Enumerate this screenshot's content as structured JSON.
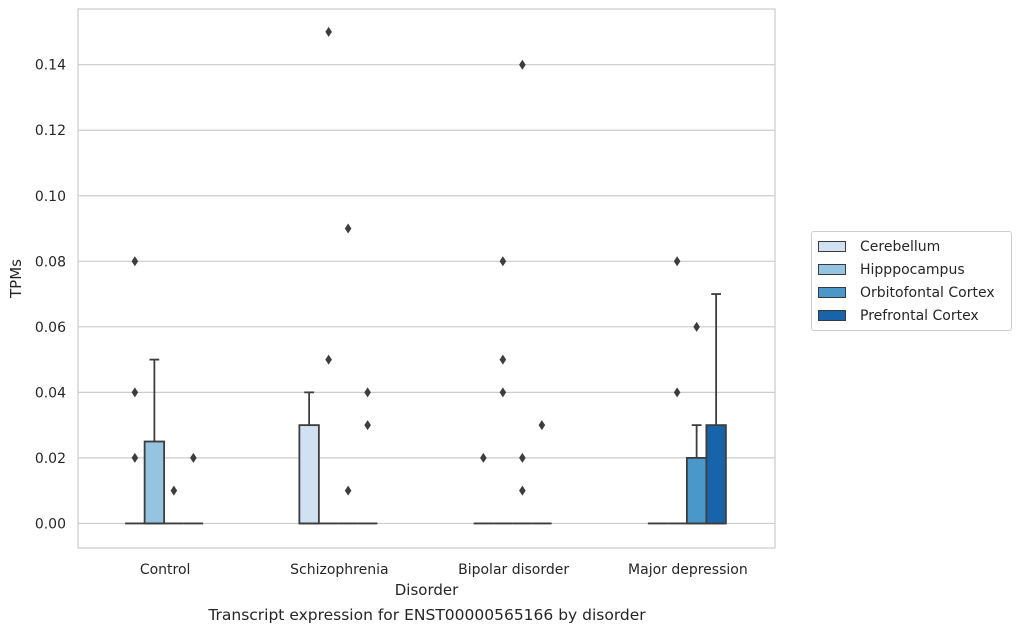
{
  "chart_data": {
    "type": "box",
    "title": "",
    "caption": "Transcript expression for ENST00000565166 by disorder",
    "xlabel": "Disorder",
    "ylabel": "TPMs",
    "ylim": [
      -0.0075,
      0.157
    ],
    "yticks": [
      0.0,
      0.02,
      0.04,
      0.06,
      0.08,
      0.1,
      0.12,
      0.14
    ],
    "ytick_labels": [
      "0.00",
      "0.02",
      "0.04",
      "0.06",
      "0.08",
      "0.10",
      "0.12",
      "0.14"
    ],
    "grid": "horizontal",
    "legend_position": "right",
    "categories": [
      "Control",
      "Schizophrenia",
      "Bipolar disorder",
      "Major depression"
    ],
    "series": [
      {
        "name": "Cerebellum",
        "color": "#d0e1f2",
        "boxes": [
          {
            "q1": 0,
            "median": 0,
            "q3": 0,
            "whisker_low": 0,
            "whisker_high": 0,
            "fliers": [
              0.02,
              0.04,
              0.08
            ]
          },
          {
            "q1": 0,
            "median": 0,
            "q3": 0.03,
            "whisker_low": 0,
            "whisker_high": 0.04,
            "fliers": []
          },
          {
            "q1": 0,
            "median": 0,
            "q3": 0,
            "whisker_low": 0,
            "whisker_high": 0,
            "fliers": [
              0.02
            ]
          },
          {
            "q1": 0,
            "median": 0,
            "q3": 0,
            "whisker_low": 0,
            "whisker_high": 0,
            "fliers": []
          }
        ]
      },
      {
        "name": "Hipppocampus",
        "color": "#94c4df",
        "boxes": [
          {
            "q1": 0,
            "median": 0,
            "q3": 0.025,
            "whisker_low": 0,
            "whisker_high": 0.05,
            "fliers": []
          },
          {
            "q1": 0,
            "median": 0,
            "q3": 0,
            "whisker_low": 0,
            "whisker_high": 0,
            "fliers": [
              0.05,
              0.15
            ]
          },
          {
            "q1": 0,
            "median": 0,
            "q3": 0,
            "whisker_low": 0,
            "whisker_high": 0,
            "fliers": [
              0.04,
              0.05,
              0.08
            ]
          },
          {
            "q1": 0,
            "median": 0,
            "q3": 0,
            "whisker_low": 0,
            "whisker_high": 0,
            "fliers": [
              0.04,
              0.08
            ]
          }
        ]
      },
      {
        "name": "Orbitofontal Cortex",
        "color": "#4a98c9",
        "boxes": [
          {
            "q1": 0,
            "median": 0,
            "q3": 0,
            "whisker_low": 0,
            "whisker_high": 0,
            "fliers": [
              0.01
            ]
          },
          {
            "q1": 0,
            "median": 0,
            "q3": 0,
            "whisker_low": 0,
            "whisker_high": 0,
            "fliers": [
              0.01,
              0.09
            ]
          },
          {
            "q1": 0,
            "median": 0,
            "q3": 0,
            "whisker_low": 0,
            "whisker_high": 0,
            "fliers": [
              0.01,
              0.02,
              0.14
            ]
          },
          {
            "q1": 0,
            "median": 0,
            "q3": 0.02,
            "whisker_low": 0,
            "whisker_high": 0.03,
            "fliers": [
              0.06
            ]
          }
        ]
      },
      {
        "name": "Prefrontal Cortex",
        "color": "#1764ab",
        "boxes": [
          {
            "q1": 0,
            "median": 0,
            "q3": 0,
            "whisker_low": 0,
            "whisker_high": 0,
            "fliers": [
              0.02
            ]
          },
          {
            "q1": 0,
            "median": 0,
            "q3": 0,
            "whisker_low": 0,
            "whisker_high": 0,
            "fliers": [
              0.03,
              0.04
            ]
          },
          {
            "q1": 0,
            "median": 0,
            "q3": 0,
            "whisker_low": 0,
            "whisker_high": 0,
            "fliers": [
              0.03
            ]
          },
          {
            "q1": 0,
            "median": 0,
            "q3": 0.03,
            "whisker_low": 0,
            "whisker_high": 0.07,
            "fliers": []
          }
        ]
      }
    ]
  }
}
